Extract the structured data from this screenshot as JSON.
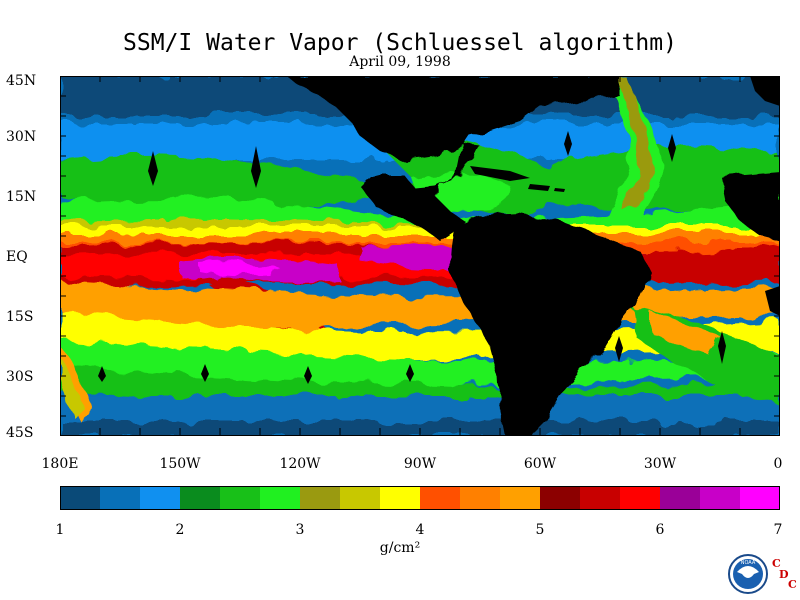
{
  "title": "SSM/I Water Vapor (Schluessel algorithm)",
  "date": "April 09, 1998",
  "lat_labels": [
    "45N",
    "30N",
    "15N",
    "EQ",
    "15S",
    "30S",
    "45S"
  ],
  "lon_labels": [
    "180E",
    "150W",
    "120W",
    "90W",
    "60W",
    "30W",
    "0"
  ],
  "colorbar": {
    "values": [
      "1",
      "2",
      "3",
      "4",
      "5",
      "6",
      "7"
    ],
    "units": "g/cm²",
    "colors": [
      "#0a4a78",
      "#0870b8",
      "#1090f0",
      "#0a8c1e",
      "#18c018",
      "#20f020",
      "#9a9a10",
      "#c8c800",
      "#ffff00",
      "#ff5000",
      "#ff8000",
      "#ffa000",
      "#8c0000",
      "#c80000",
      "#ff0000",
      "#9a0098",
      "#c800c8",
      "#ff00ff"
    ]
  },
  "logo": {
    "noaa_text": "NOAA",
    "cdc_letters": [
      "C",
      "D",
      "C"
    ]
  }
}
